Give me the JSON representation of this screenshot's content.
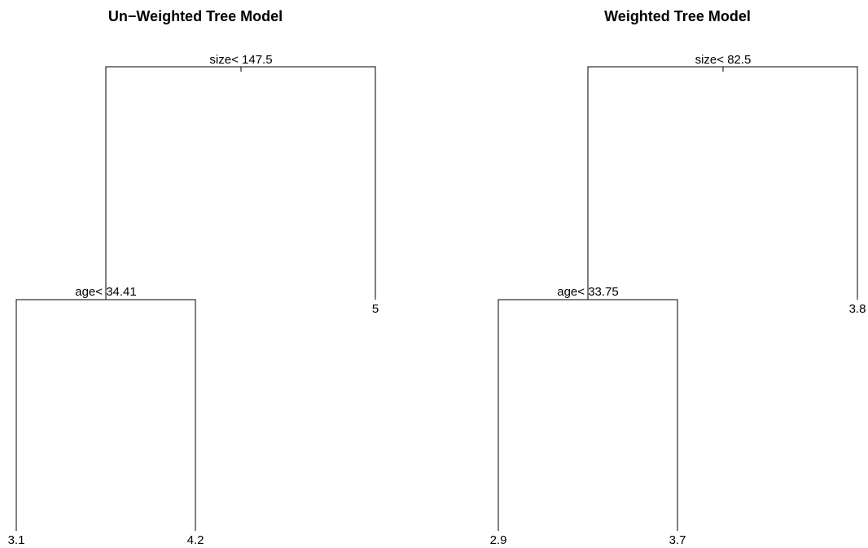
{
  "panels": [
    {
      "title": "Un−Weighted Tree Model",
      "root_split": "size< 147.5",
      "left_split": "age< 34.41",
      "leaves": {
        "left_left": "3.1",
        "left_right": "4.2",
        "right": "5"
      }
    },
    {
      "title": "Weighted Tree Model",
      "root_split": "size< 82.5",
      "left_split": "age< 33.75",
      "leaves": {
        "left_left": "2.9",
        "left_right": "3.7",
        "right": "3.8"
      }
    }
  ]
}
